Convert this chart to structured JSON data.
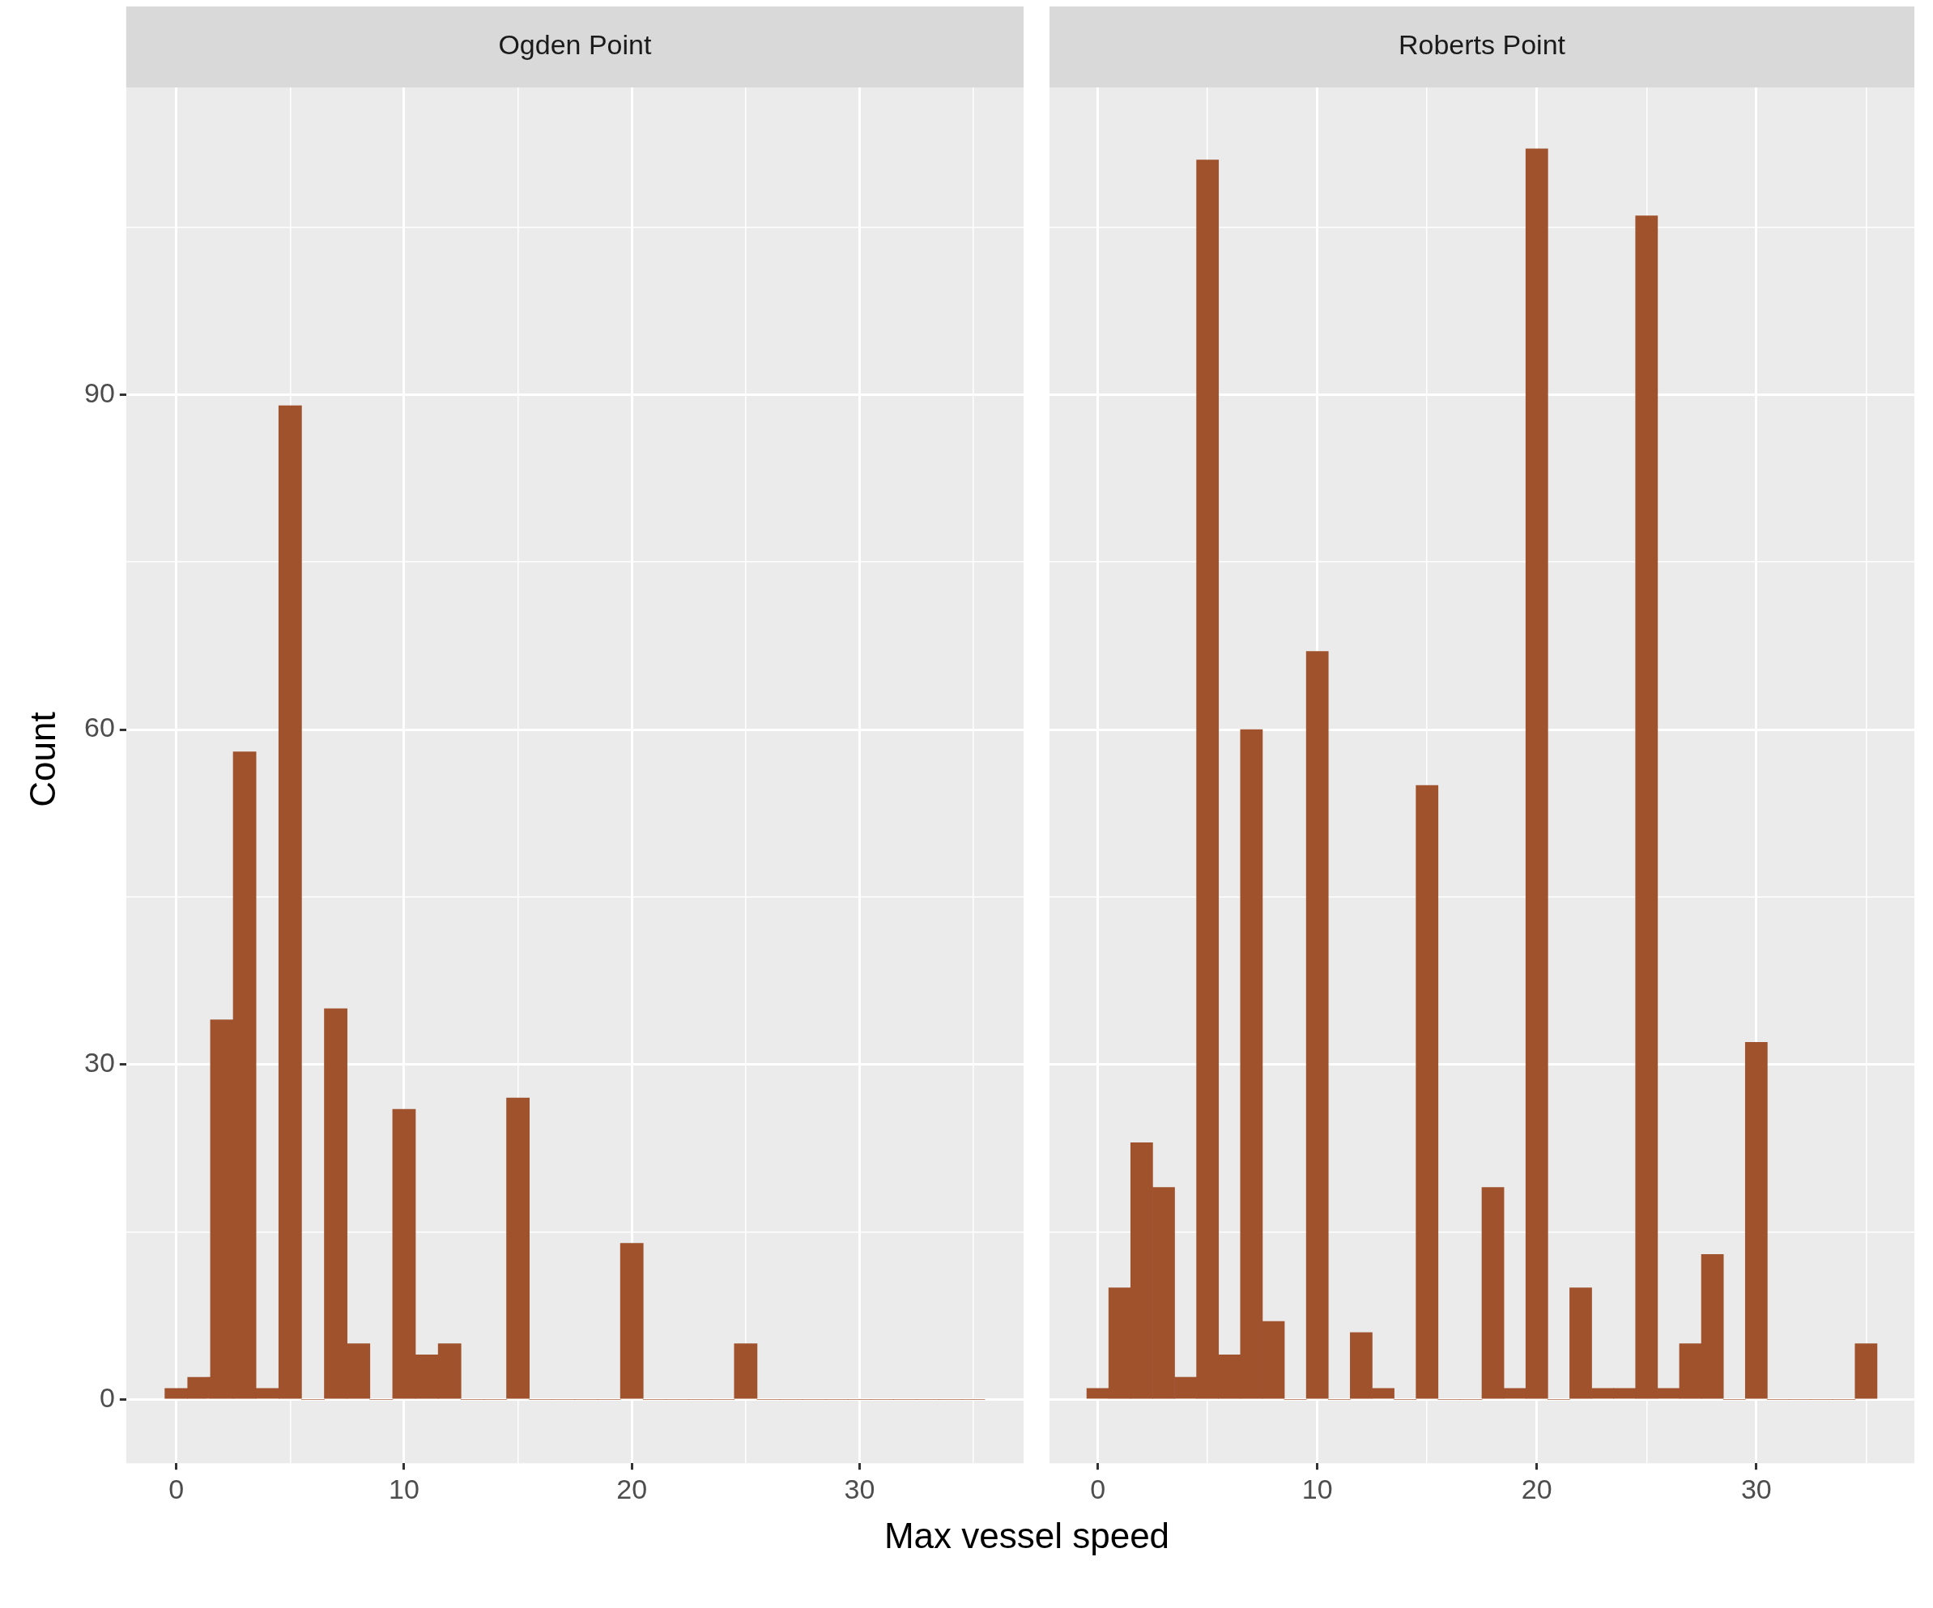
{
  "chart_data": [
    {
      "type": "histogram",
      "title": "Ogden Point",
      "xlabel": "Max vessel speed",
      "ylabel": "Count",
      "color": "#a0522d",
      "grid": true,
      "bins": [
        -0.5,
        0.5,
        1.5,
        2.5,
        3.5,
        4.5,
        5.5,
        6.5,
        7.5,
        8.5,
        9.5,
        10.5,
        11.5,
        12.5,
        13.5,
        14.5,
        15.5,
        16.5,
        17.5,
        18.5,
        19.5,
        20.5,
        21.5,
        22.5,
        23.5,
        24.5,
        25.5,
        26.5,
        27.5,
        28.5,
        29.5,
        30.5,
        31.5,
        32.5,
        33.5,
        34.5,
        35.5
      ],
      "values": [
        1,
        2,
        34,
        58,
        1,
        89,
        0,
        35,
        5,
        0,
        26,
        4,
        5,
        0,
        0,
        27,
        0,
        0,
        0,
        0,
        14,
        0,
        0,
        0,
        0,
        5,
        0,
        0,
        0,
        0,
        0,
        0,
        0,
        0,
        0,
        0
      ],
      "xlim": [
        -2.2,
        37.2
      ],
      "xticks": [
        0,
        {
          "value": 5,
          "label": null
        },
        10,
        {
          "value": 15,
          "label": null
        },
        20,
        {
          "value": 25,
          "label": null
        },
        30,
        {
          "value": 35,
          "label": null
        }
      ],
      "ylim": [
        -5.7,
        117.5
      ],
      "yticks": [
        0,
        {
          "value": 15,
          "label": null
        },
        30,
        {
          "value": 45,
          "label": null
        },
        60,
        {
          "value": 75,
          "label": null
        },
        90,
        {
          "value": 105,
          "label": null
        }
      ]
    },
    {
      "type": "histogram",
      "title": "Roberts Point",
      "color": "#a0522d",
      "grid": true,
      "tick_labels": "x",
      "bins": [
        -0.5,
        0.5,
        1.5,
        2.5,
        3.5,
        4.5,
        5.5,
        6.5,
        7.5,
        8.5,
        9.5,
        10.5,
        11.5,
        12.5,
        13.5,
        14.5,
        15.5,
        16.5,
        17.5,
        18.5,
        19.5,
        20.5,
        21.5,
        22.5,
        23.5,
        24.5,
        25.5,
        26.5,
        27.5,
        28.5,
        29.5,
        30.5,
        31.5,
        32.5,
        33.5,
        34.5,
        35.5
      ],
      "values": [
        1,
        10,
        23,
        19,
        2,
        111,
        4,
        60,
        7,
        0,
        67,
        0,
        6,
        1,
        0,
        55,
        0,
        0,
        19,
        1,
        112,
        0,
        10,
        1,
        1,
        106,
        1,
        5,
        13,
        0,
        32,
        0,
        0,
        0,
        0,
        5
      ],
      "xlim": [
        -2.2,
        37.2
      ],
      "xticks": [
        0,
        {
          "value": 5,
          "label": null
        },
        10,
        {
          "value": 15,
          "label": null
        },
        20,
        {
          "value": 25,
          "label": null
        },
        30,
        {
          "value": 35,
          "label": null
        }
      ],
      "ylim": [
        -5.7,
        117.5
      ],
      "yticks": [
        0,
        {
          "value": 15,
          "label": null
        },
        30,
        {
          "value": 45,
          "label": null
        },
        60,
        {
          "value": 75,
          "label": null
        },
        90,
        {
          "value": 105,
          "label": null
        }
      ]
    }
  ]
}
